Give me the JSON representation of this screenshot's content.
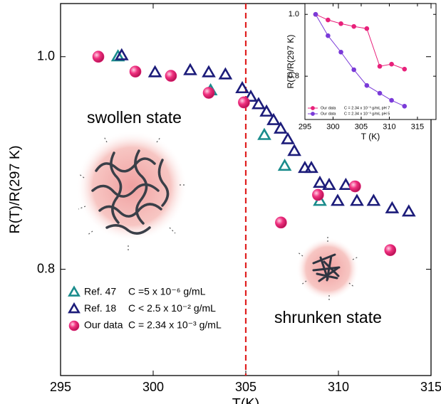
{
  "chart_data": [
    {
      "type": "scatter",
      "xlabel": "T(K)",
      "ylabel": "R(T)/R(297 K)",
      "xlim": [
        295,
        315
      ],
      "ylim": [
        0.7,
        1.05
      ],
      "xticks": [
        295,
        300,
        305,
        310,
        315
      ],
      "yticks": [
        0.8,
        {
          "value": 1,
          "label": "1.0"
        }
      ],
      "vline": 305,
      "vline_color": "#e02020",
      "annotations": [
        "swollen state",
        "shrunken state"
      ],
      "series": [
        {
          "name": "Ref. 47",
          "label": "C =5 x 10⁻⁶ g/mL",
          "color": "#1a8c8c",
          "marker": "triangle",
          "x": [
            298.1,
            303.1,
            306.0,
            307.1,
            309.0
          ],
          "values": [
            1.0,
            0.968,
            0.926,
            0.897,
            0.864
          ]
        },
        {
          "name": "Ref. 18",
          "label": "C < 2.5 x 10⁻² g/mL",
          "color": "#1c1c7a",
          "marker": "triangle",
          "x": [
            298.3,
            300.1,
            302.0,
            303.0,
            303.9,
            304.81,
            305.27,
            305.69,
            306.12,
            306.5,
            306.88,
            307.27,
            307.62,
            308.19,
            308.54,
            309.0,
            309.5,
            309.96,
            310.4,
            311.0,
            311.9,
            312.9,
            313.8
          ],
          "values": [
            1.001,
            0.985,
            0.987,
            0.985,
            0.983,
            0.97,
            0.962,
            0.955,
            0.948,
            0.94,
            0.932,
            0.922,
            0.911,
            0.895,
            0.895,
            0.881,
            0.879,
            0.864,
            0.879,
            0.864,
            0.864,
            0.857,
            0.854
          ]
        },
        {
          "name": "Our data",
          "label": "C = 2.34 x 10⁻³ g/mL",
          "color": "#e8207a",
          "marker": "circle",
          "x": [
            297.04,
            299.04,
            300.96,
            303.0,
            304.9,
            306.9,
            308.9,
            310.9,
            312.8
          ],
          "values": [
            1.0,
            0.986,
            0.982,
            0.966,
            0.957,
            0.844,
            0.87,
            0.878,
            0.818
          ]
        }
      ]
    },
    {
      "type": "line",
      "xlabel": "T (K)",
      "ylabel": "R(T)/R(297 K)",
      "xlim": [
        295,
        318.3
      ],
      "ylim": [
        0.66,
        1.035
      ],
      "xticks": [
        295,
        300,
        305,
        310,
        315
      ],
      "yticks": [
        0.8,
        {
          "value": 1,
          "label": "1.0"
        }
      ],
      "series": [
        {
          "name": "Our data",
          "label": "C = 2.34 x 10⁻³ g/mL  pH 7",
          "color": "#e8207a",
          "x": [
            296.9,
            299.1,
            301.4,
            303.7,
            306.0,
            308.3,
            310.4,
            312.7
          ],
          "values": [
            1.0,
            0.982,
            0.97,
            0.961,
            0.954,
            0.832,
            0.839,
            0.823
          ]
        },
        {
          "name": "Our data",
          "label": "C = 2.34 x 10⁻³ g/mL  pH 5",
          "color": "#7a3ad8",
          "x": [
            296.9,
            299.1,
            301.4,
            303.7,
            306.0,
            308.3,
            310.4,
            312.7
          ],
          "values": [
            1.0,
            0.931,
            0.878,
            0.821,
            0.77,
            0.745,
            0.722,
            0.703
          ]
        }
      ]
    }
  ]
}
